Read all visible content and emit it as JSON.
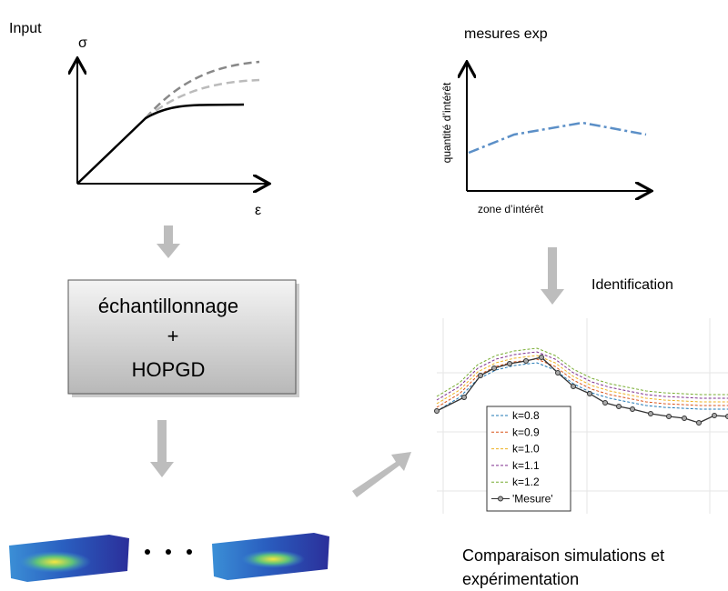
{
  "input_panel": {
    "label": "Input",
    "y_axis": "σ",
    "x_axis": "ε"
  },
  "measures_panel": {
    "title": "mesures exp",
    "y_axis": "quantité d’intérêt",
    "x_axis": "zone d’intérêt"
  },
  "process_box": {
    "lines": [
      "échantillonnage",
      "+",
      "HOPGD"
    ]
  },
  "identification_label": "Identification",
  "comparison_plot": {
    "legend": [
      {
        "label": "k=0.8",
        "color": "#1f77b4"
      },
      {
        "label": "k=0.9",
        "color": "#d95319"
      },
      {
        "label": "k=1.0",
        "color": "#edb120"
      },
      {
        "label": "k=1.1",
        "color": "#7e2f8e"
      },
      {
        "label": "k=1.2",
        "color": "#77ac30"
      },
      {
        "label": "'Mesure'",
        "color": "#333333"
      }
    ]
  },
  "caption": [
    "Comparaison simulations et",
    "expérimentation"
  ]
}
